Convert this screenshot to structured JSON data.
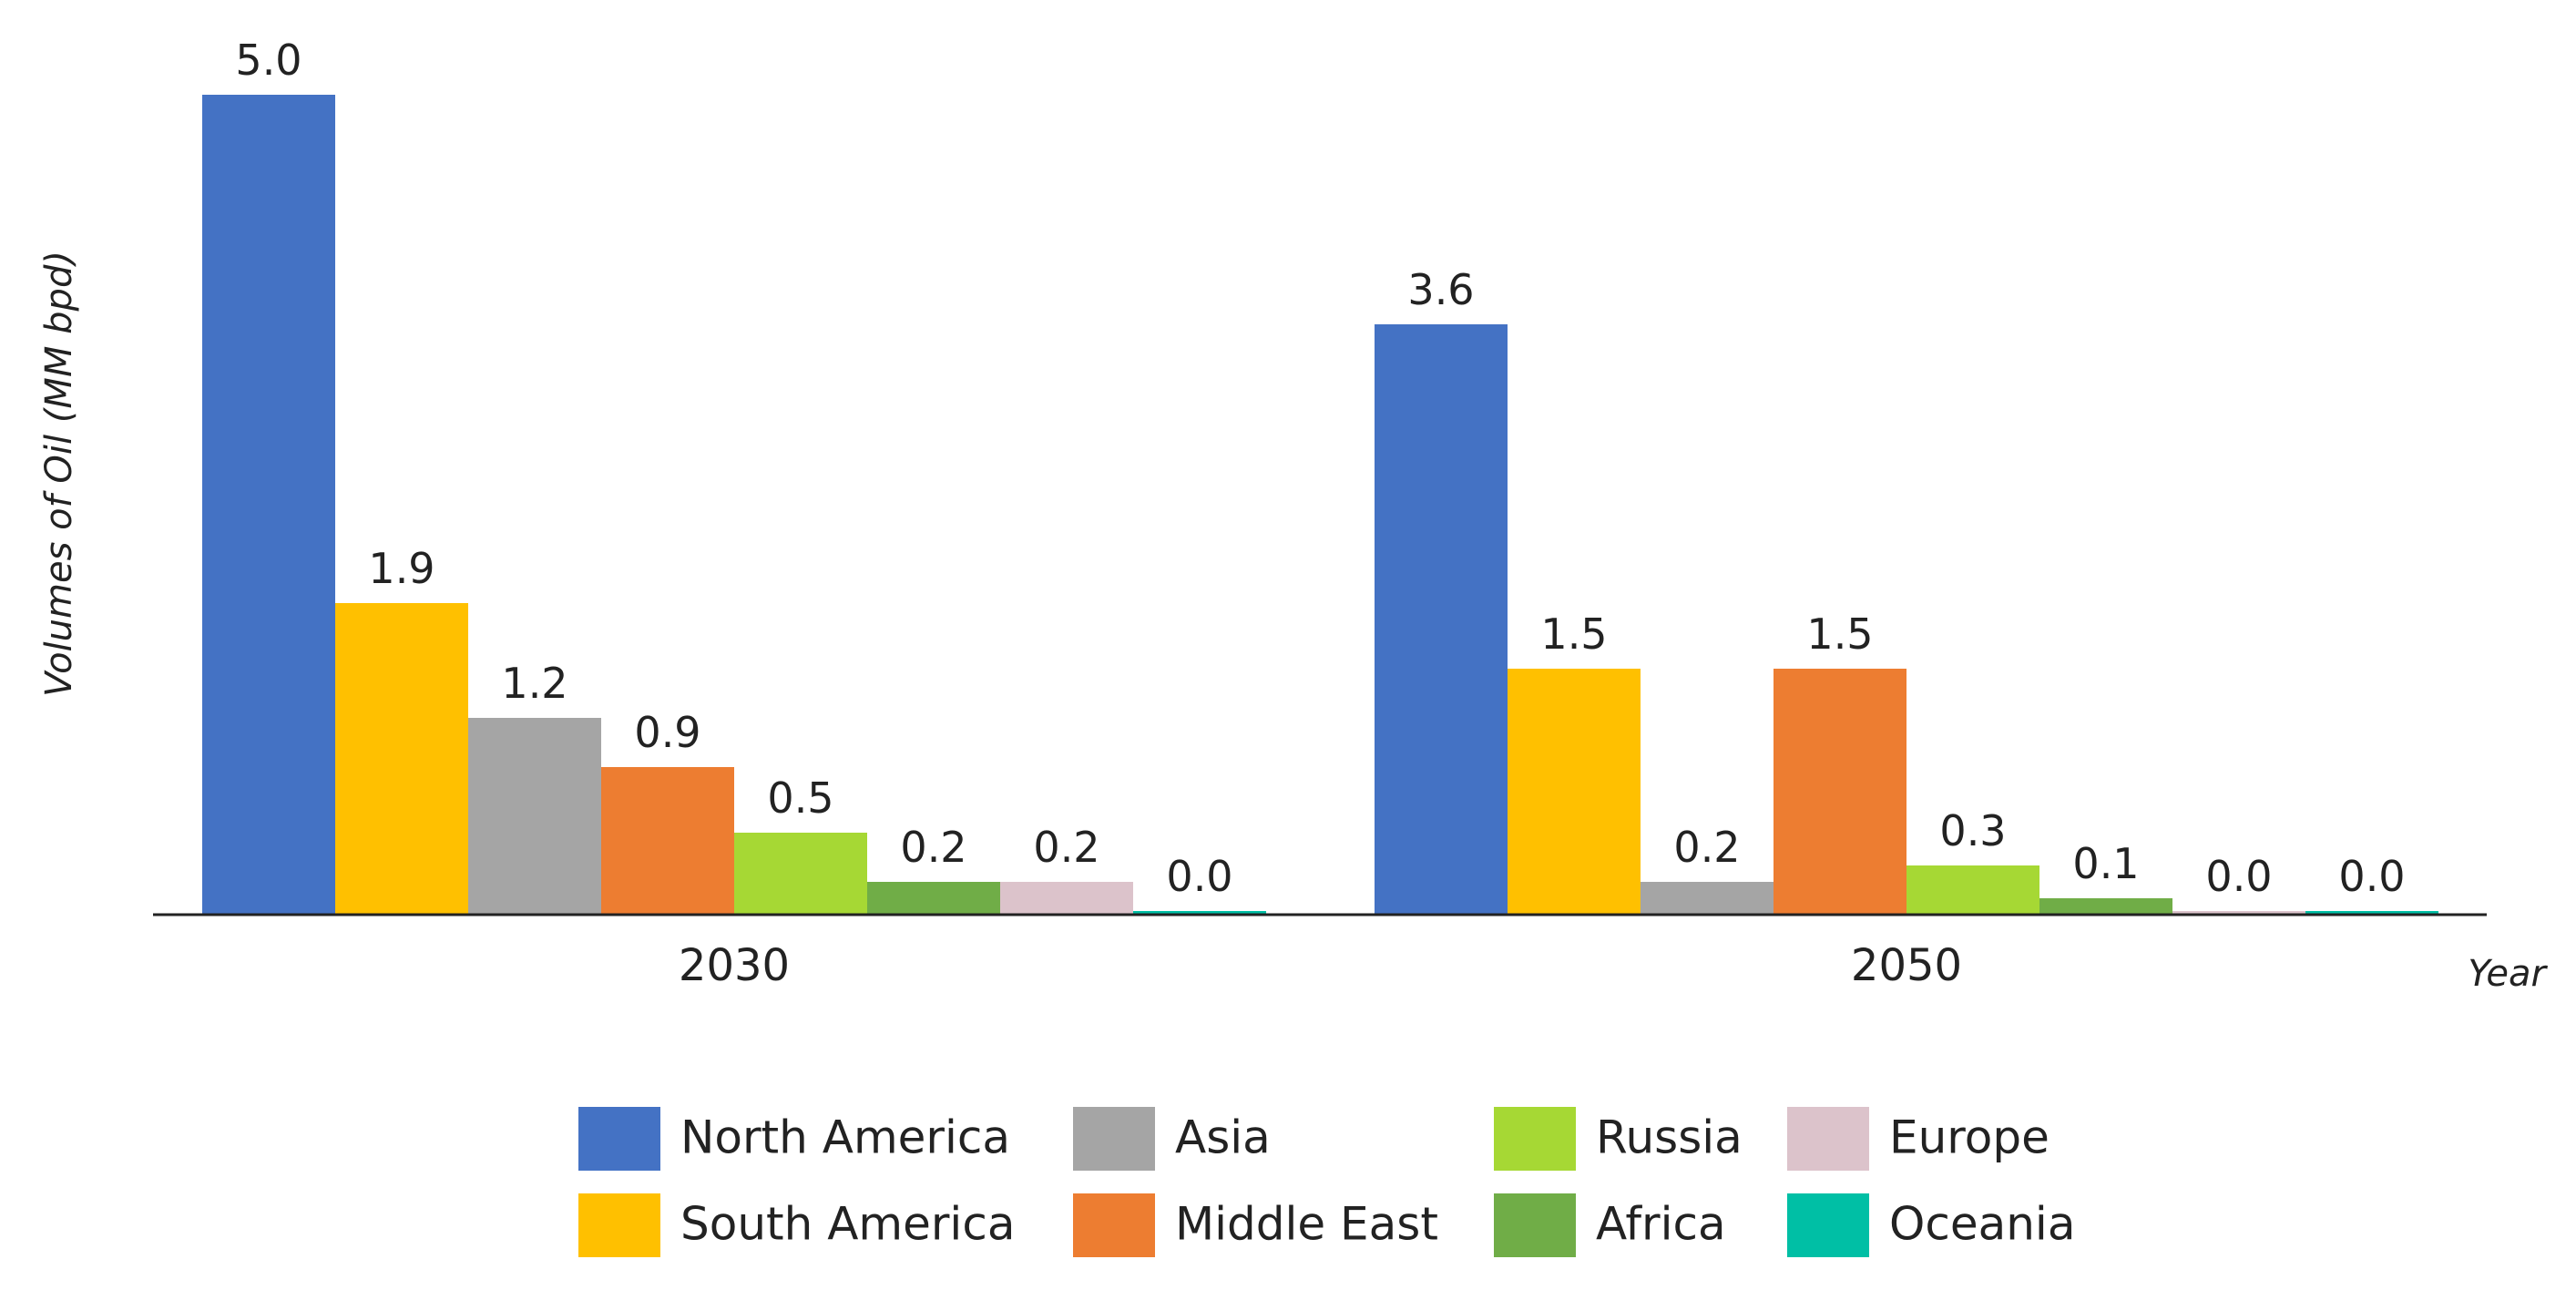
{
  "chart_data": {
    "type": "bar",
    "title": "",
    "xlabel": "Year",
    "ylabel": "Volumes of Oil  (MM bpd)",
    "categories": [
      "2030",
      "2050"
    ],
    "ylim": [
      0,
      5.0
    ],
    "grid": false,
    "legend_position": "bottom",
    "series": [
      {
        "name": "North America",
        "color": "#4472C4",
        "values": [
          5.0,
          3.6
        ]
      },
      {
        "name": "South America",
        "color": "#FFC000",
        "values": [
          1.9,
          1.5
        ]
      },
      {
        "name": "Asia",
        "color": "#A5A5A5",
        "values": [
          1.2,
          0.2
        ]
      },
      {
        "name": "Middle East",
        "color": "#ED7D31",
        "values": [
          0.9,
          1.5
        ]
      },
      {
        "name": "Russia",
        "color": "#A6D834",
        "values": [
          0.5,
          0.3
        ]
      },
      {
        "name": "Africa",
        "color": "#70AD47",
        "values": [
          0.2,
          0.1
        ]
      },
      {
        "name": "Europe",
        "color": "#DCC3CB",
        "values": [
          0.2,
          0.0
        ]
      },
      {
        "name": "Oceania",
        "color": "#00BFA5",
        "values": [
          0.0,
          0.0
        ]
      }
    ],
    "value_labels": [
      [
        "5.0",
        "3.6"
      ],
      [
        "1.9",
        "1.5"
      ],
      [
        "1.2",
        "0.2"
      ],
      [
        "0.9",
        "1.5"
      ],
      [
        "0.5",
        "0.3"
      ],
      [
        "0.2",
        "0.1"
      ],
      [
        "0.2",
        "0.0"
      ],
      [
        "0.0",
        "0.0"
      ]
    ],
    "legend_order": [
      "North America",
      "Asia",
      "Russia",
      "Europe",
      "South America",
      "Middle East",
      "Africa",
      "Oceania"
    ]
  }
}
